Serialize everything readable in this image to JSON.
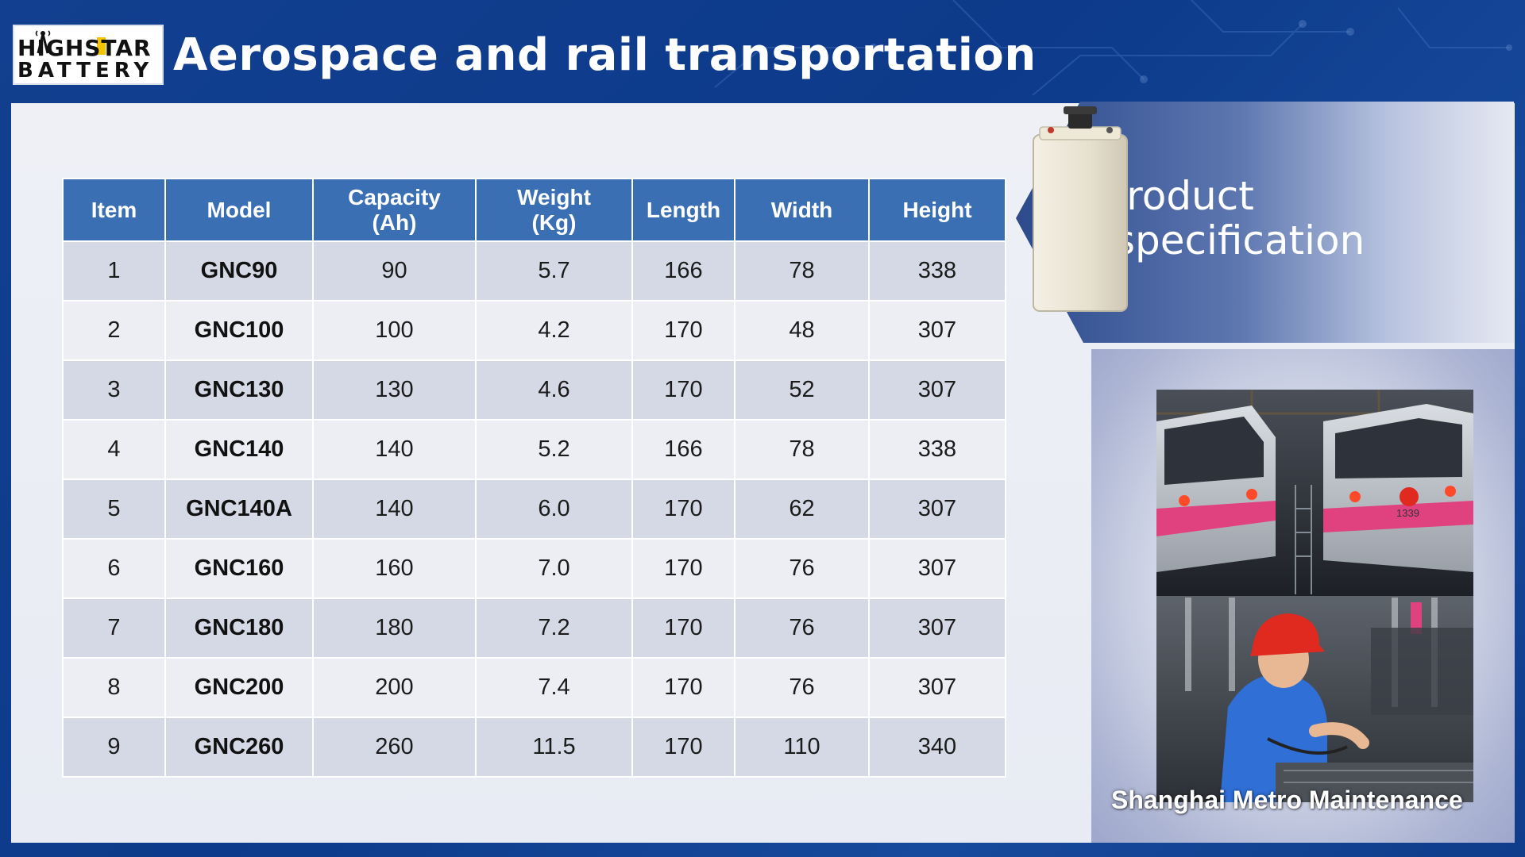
{
  "header": {
    "title": "Aerospace and rail transportation",
    "logo": {
      "line1": "HIGHSTAR",
      "line2": "BATTERY",
      "icon": "antenna-tower-icon"
    }
  },
  "spec_panel": {
    "title_line1": "Product",
    "title_line2": "specification",
    "image": "battery-cell-icon"
  },
  "table": {
    "columns": [
      {
        "line1": "Item",
        "line2": ""
      },
      {
        "line1": "Model",
        "line2": ""
      },
      {
        "line1": "Capacity",
        "line2": "(Ah)"
      },
      {
        "line1": "Weight",
        "line2": "(Kg)"
      },
      {
        "line1": "Length",
        "line2": ""
      },
      {
        "line1": "Width",
        "line2": ""
      },
      {
        "line1": "Height",
        "line2": ""
      }
    ],
    "rows": [
      [
        "1",
        "GNC90",
        "90",
        "5.7",
        "166",
        "78",
        "338"
      ],
      [
        "2",
        "GNC100",
        "100",
        "4.2",
        "170",
        "48",
        "307"
      ],
      [
        "3",
        "GNC130",
        "130",
        "4.6",
        "170",
        "52",
        "307"
      ],
      [
        "4",
        "GNC140",
        "140",
        "5.2",
        "166",
        "78",
        "338"
      ],
      [
        "5",
        "GNC140A",
        "140",
        "6.0",
        "170",
        "62",
        "307"
      ],
      [
        "6",
        "GNC160",
        "160",
        "7.0",
        "170",
        "76",
        "307"
      ],
      [
        "7",
        "GNC180",
        "180",
        "7.2",
        "170",
        "76",
        "307"
      ],
      [
        "8",
        "GNC200",
        "200",
        "7.4",
        "170",
        "76",
        "307"
      ],
      [
        "9",
        "GNC260",
        "260",
        "11.5",
        "170",
        "110",
        "340"
      ]
    ]
  },
  "photo": {
    "caption": "Shanghai Metro Maintenance",
    "train_number": "1339"
  },
  "colors": {
    "header_bg": "#123f8f",
    "table_header": "#3a6fb4",
    "row_odd": "#d4d9e5",
    "row_even": "#eceef4",
    "metro_pink": "#e0427f",
    "helmet_red": "#e02a1f"
  }
}
